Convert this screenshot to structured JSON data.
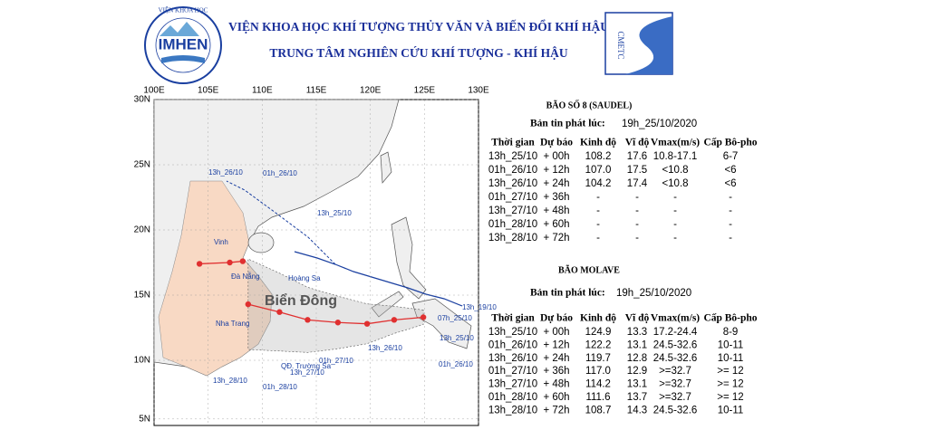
{
  "header": {
    "org_title": "VIỆN KHOA HỌC KHÍ TƯỢNG THỦY VĂN VÀ BIẾN ĐỔI KHÍ HẬU",
    "center_title": "TRUNG TÂM NGHIÊN CỨU KHÍ TƯỢNG - KHÍ HẬU",
    "left_logo": "IMHEN",
    "left_logo_arc": "VIỆN KHOA HỌC",
    "right_logo": "CMETC"
  },
  "map": {
    "lon_labels": [
      "100E",
      "105E",
      "110E",
      "115E",
      "120E",
      "125E",
      "130E"
    ],
    "lat_labels": [
      "30N",
      "25N",
      "20N",
      "15N",
      "10N",
      "5N"
    ],
    "labels": [
      "Biển Đông",
      "Vinh",
      "Đà Nẵng",
      "Hoàng Sa",
      "Nha Trang",
      "QĐ. Trường Sa",
      "13h_26/10",
      "01h_26/10",
      "13h_25/10",
      "13h_19/10",
      "07h_25/10",
      "13h_25/10",
      "01h_26/10",
      "13h_26/10",
      "01h_27/10",
      "13h_27/10",
      "01h_28/10",
      "13h_28/10"
    ]
  },
  "storms": [
    {
      "title": "BÃO SỐ 8 (SAUDEL)",
      "issue_label": "Bản tin phát lúc:",
      "issue_time": "19h_25/10/2020",
      "columns": [
        "Thời gian",
        "Dự báo",
        "Kinh độ",
        "Vĩ độ",
        "Vmax(m/s)",
        "Cấp Bô-pho"
      ],
      "rows": [
        [
          "13h_25/10",
          "+ 00h",
          "108.2",
          "17.6",
          "10.8-17.1",
          "6-7"
        ],
        [
          "01h_26/10",
          "+ 12h",
          "107.0",
          "17.5",
          "<10.8",
          "<6"
        ],
        [
          "13h_26/10",
          "+ 24h",
          "104.2",
          "17.4",
          "<10.8",
          "<6"
        ],
        [
          "01h_27/10",
          "+ 36h",
          "-",
          "-",
          "-",
          "-"
        ],
        [
          "13h_27/10",
          "+ 48h",
          "-",
          "-",
          "-",
          "-"
        ],
        [
          "01h_28/10",
          "+ 60h",
          "-",
          "-",
          "-",
          "-"
        ],
        [
          "13h_28/10",
          "+ 72h",
          "-",
          "-",
          "-",
          "-"
        ]
      ]
    },
    {
      "title": "BÃO MOLAVE",
      "issue_label": "Bản tin phát lúc:",
      "issue_time": "19h_25/10/2020",
      "columns": [
        "Thời gian",
        "Dự báo",
        "Kinh độ",
        "Vĩ độ",
        "Vmax(m/s)",
        "Cấp Bô-pho"
      ],
      "rows": [
        [
          "13h_25/10",
          "+ 00h",
          "124.9",
          "13.3",
          "17.2-24.4",
          "8-9"
        ],
        [
          "01h_26/10",
          "+ 12h",
          "122.2",
          "13.1",
          "24.5-32.6",
          "10-11"
        ],
        [
          "13h_26/10",
          "+ 24h",
          "119.7",
          "12.8",
          "24.5-32.6",
          "10-11"
        ],
        [
          "01h_27/10",
          "+ 36h",
          "117.0",
          "12.9",
          ">=32.7",
          ">= 12"
        ],
        [
          "13h_27/10",
          "+ 48h",
          "114.2",
          "13.1",
          ">=32.7",
          ">= 12"
        ],
        [
          "01h_28/10",
          "+ 60h",
          "111.6",
          "13.7",
          ">=32.7",
          ">= 12"
        ],
        [
          "13h_28/10",
          "+ 72h",
          "108.7",
          "14.3",
          "24.5-32.6",
          "10-11"
        ]
      ]
    }
  ]
}
